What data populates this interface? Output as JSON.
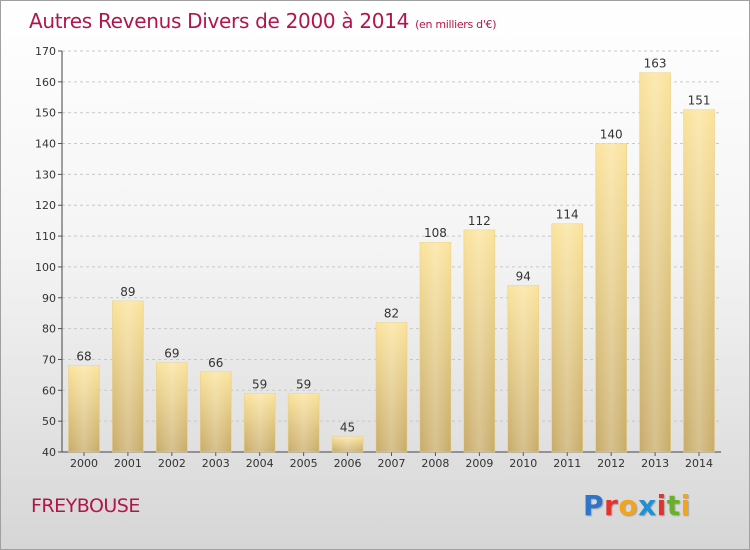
{
  "title": "Autres Revenus Divers de 2000 à 2014",
  "subtitle": "(en milliers d'€)",
  "commune": "FREYBOUSE",
  "logo": {
    "letters": [
      "P",
      "r",
      "o",
      "x",
      "i",
      "t",
      "i"
    ],
    "colors": [
      "#2e74c9",
      "#e2342d",
      "#f2a51c",
      "#1f8fd6",
      "#e2342d",
      "#6ab02a",
      "#f2a51c"
    ]
  },
  "colors": {
    "title": "#b0164c",
    "bar_light": "#fbe39a",
    "bar_dark": "#c8ab68"
  },
  "chart_data": {
    "type": "bar",
    "title": "Autres Revenus Divers de 2000 à 2014",
    "ylabel": "",
    "xlabel": "",
    "categories": [
      "2000",
      "2001",
      "2002",
      "2003",
      "2004",
      "2005",
      "2006",
      "2007",
      "2008",
      "2009",
      "2010",
      "2011",
      "2012",
      "2013",
      "2014"
    ],
    "values": [
      68,
      89,
      69,
      66,
      59,
      59,
      45,
      82,
      108,
      112,
      94,
      114,
      140,
      163,
      151
    ],
    "ylim": [
      40,
      170
    ],
    "yticks": [
      40,
      50,
      60,
      70,
      80,
      90,
      100,
      110,
      120,
      130,
      140,
      150,
      160,
      170
    ],
    "grid": "horizontal dashed",
    "data_labels": true
  }
}
